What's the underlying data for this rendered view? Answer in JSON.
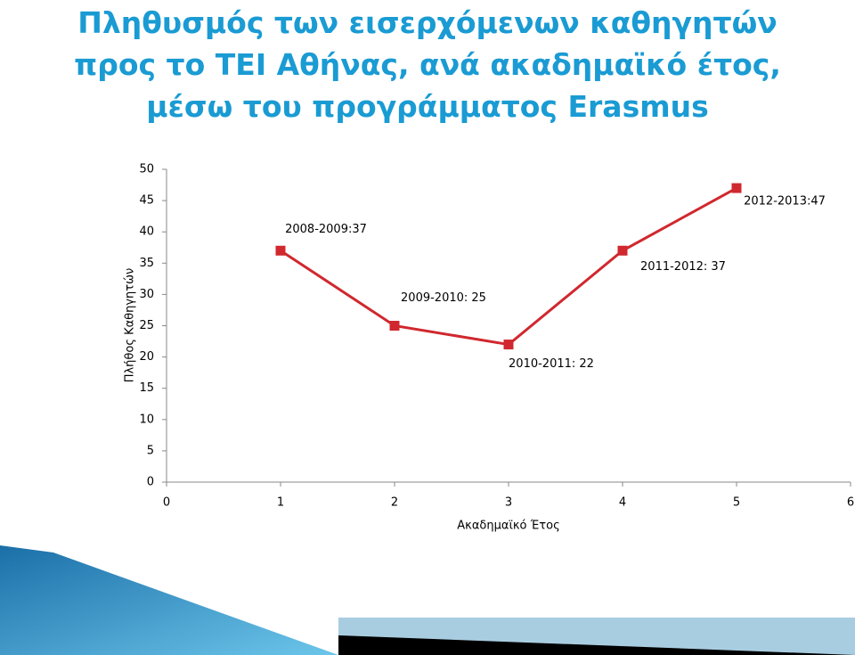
{
  "chart_data": {
    "type": "line",
    "title": "Πληθυσμός των εισερχόμενων καθηγητών προς το ΤΕΙ Αθήνας, ανά ακαδημαϊκό έτος, μέσω του προγράμματος Erasmus",
    "x_label": "Ακαδημαϊκό Έτος",
    "y_label": "Πλήθος Καθηγητών",
    "x": [
      1,
      2,
      3,
      4,
      5
    ],
    "series": [
      {
        "color": "#d0282e",
        "values": [
          37,
          25,
          22,
          37,
          47
        ],
        "value_labels": [
          "2008-2009:37",
          "2009-2010: 25",
          "2010-2011: 22",
          "2011-2012: 37",
          "2012-2013:47"
        ]
      }
    ],
    "xlim": [
      0,
      6
    ],
    "xticks": [
      0,
      1,
      2,
      3,
      4,
      5,
      6
    ],
    "ylim": [
      0,
      50
    ],
    "yticks": [
      0,
      5,
      10,
      15,
      20,
      25,
      30,
      35,
      40,
      45,
      50
    ]
  }
}
